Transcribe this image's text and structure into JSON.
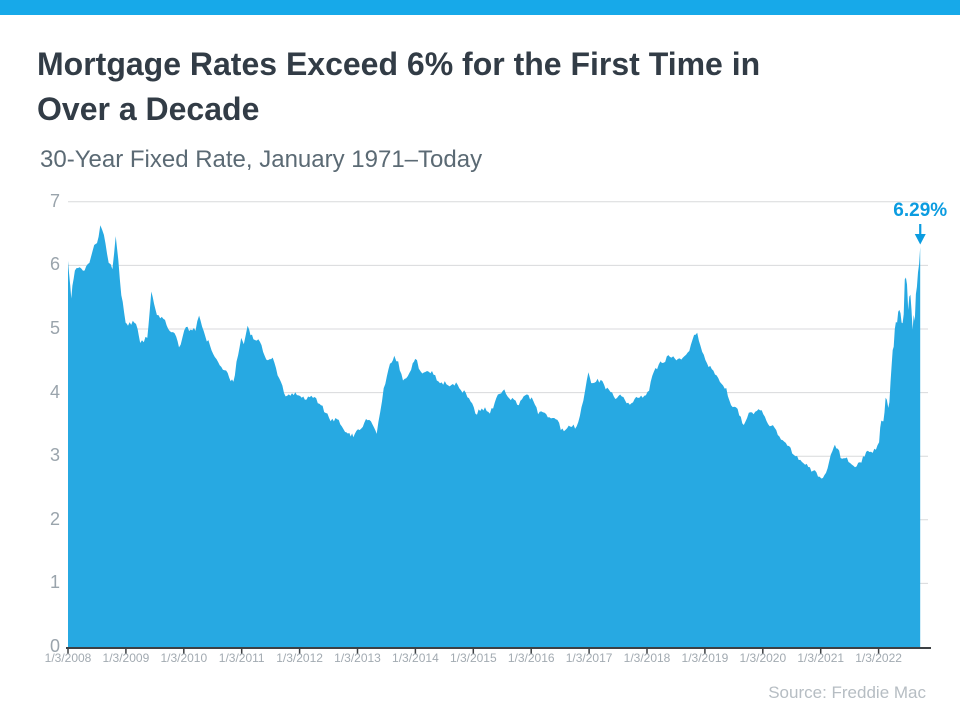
{
  "page": {
    "background": "#ffffff"
  },
  "top_bar": {
    "color": "#17a9e9"
  },
  "header": {
    "title": "Mortgage Rates Exceed 6% for the First Time in Over a Decade",
    "title_lines": [
      "Mortgage Rates Exceed 6% for the First Time in",
      "Over a Decade"
    ],
    "title_color": "#323c46",
    "subtitle": "30-Year Fixed Rate, January 1971–Today",
    "subtitle_color": "#5b6a74"
  },
  "footer": {
    "source": "Source: Freddie Mac",
    "color": "#b6bdc3"
  },
  "chart_data": {
    "type": "area",
    "series_name": "30-Year Fixed Mortgage Rate (%)",
    "area_color": "#27a9e2",
    "gridline_color": "#d8dadc",
    "axis_color": "#3d4043",
    "ytick_color": "#9aa4ac",
    "xtick_color": "#a2aab1",
    "grid": "horizontal gridlines at each whole percent, no vertical gridlines",
    "legend": "none",
    "ylim": [
      0,
      7
    ],
    "yticks": [
      0,
      1,
      2,
      3,
      4,
      5,
      6,
      7
    ],
    "xticks": [
      "1/3/2008",
      "1/3/2009",
      "1/3/2010",
      "1/3/2011",
      "1/3/2012",
      "1/3/2013",
      "1/3/2014",
      "1/3/2015",
      "1/3/2016",
      "1/3/2017",
      "1/3/2018",
      "1/3/2019",
      "1/3/2020",
      "1/3/2021",
      "1/3/2022"
    ],
    "annotation": {
      "label": "6.29%",
      "value": 6.29,
      "date": "9/22/2022",
      "color": "#0b9ce0",
      "arrow": "down"
    },
    "points": [
      {
        "dates": [
          "1/3/2008",
          "1/10/2008",
          "1/17/2008",
          "1/24/2008",
          "1/31/2008",
          "2008-02",
          "2008-03",
          "2008-04",
          "2008-05",
          "2008-06",
          "7/3/2008",
          "7/24/2008",
          "2008-08",
          "2008-09",
          "10/9/2008",
          "10/30/2008",
          "2008-11",
          "12/4/2008",
          "12/31/2008"
        ],
        "values": [
          6.07,
          5.87,
          5.69,
          5.48,
          5.68,
          5.92,
          5.97,
          5.92,
          6.04,
          6.32,
          6.35,
          6.63,
          6.48,
          6.04,
          5.94,
          6.46,
          6.09,
          5.53,
          5.1
        ]
      },
      {
        "dates": [
          "2009-01",
          "2009-02",
          "2009-03",
          "4/2/2009",
          "2009-05",
          "6/11/2009",
          "2009-07",
          "2009-08",
          "2009-09",
          "2009-10",
          "2009-11",
          "12/3/2009"
        ],
        "values": [
          5.05,
          5.13,
          5.0,
          4.78,
          4.86,
          5.59,
          5.22,
          5.19,
          5.06,
          4.95,
          4.88,
          4.71
        ]
      },
      {
        "dates": [
          "2010-01",
          "2010-02",
          "2010-03",
          "4/8/2010",
          "2010-05",
          "2010-06",
          "2010-07",
          "2010-08",
          "2010-09",
          "2010-10",
          "11/11/2010",
          "12/30/2010"
        ],
        "values": [
          5.03,
          4.99,
          4.97,
          5.21,
          4.89,
          4.74,
          4.56,
          4.43,
          4.35,
          4.23,
          4.17,
          4.86
        ]
      },
      {
        "dates": [
          "2011-01",
          "2/10/2011",
          "2011-03",
          "2011-04",
          "2011-05",
          "2011-06",
          "2011-07",
          "2011-08",
          "2011-09",
          "10/6/2011",
          "2011-11",
          "2011-12"
        ],
        "values": [
          4.76,
          5.05,
          4.84,
          4.84,
          4.64,
          4.51,
          4.55,
          4.27,
          4.11,
          3.94,
          3.99,
          3.96
        ]
      },
      {
        "dates": [
          "2012-01",
          "2012-02",
          "2012-03",
          "2012-04",
          "2012-05",
          "2012-06",
          "2012-07",
          "2012-08",
          "2012-09",
          "2012-10",
          "11/21/2012",
          "2012-12"
        ],
        "values": [
          3.92,
          3.89,
          3.95,
          3.91,
          3.8,
          3.68,
          3.55,
          3.6,
          3.5,
          3.38,
          3.31,
          3.35
        ]
      },
      {
        "dates": [
          "2013-01",
          "2013-02",
          "2013-03",
          "2013-04",
          "5/2/2013",
          "2013-06",
          "2013-07",
          "8/22/2013",
          "2013-09",
          "2013-10",
          "2013-11",
          "2013-12"
        ],
        "values": [
          3.41,
          3.53,
          3.57,
          3.45,
          3.35,
          4.07,
          4.37,
          4.58,
          4.49,
          4.19,
          4.26,
          4.46
        ]
      },
      {
        "dates": [
          "1/2/2014",
          "2014-02",
          "2014-03",
          "2014-04",
          "2014-05",
          "2014-06",
          "2014-07",
          "2014-08",
          "2014-09",
          "2014-10",
          "2014-11",
          "2014-12"
        ],
        "values": [
          4.53,
          4.3,
          4.34,
          4.34,
          4.19,
          4.16,
          4.13,
          4.12,
          4.16,
          4.04,
          4.0,
          3.86
        ]
      },
      {
        "dates": [
          "2015-01",
          "2015-02",
          "2015-03",
          "2015-04",
          "2015-05",
          "2015-06",
          "2015-07",
          "2015-08",
          "2015-09",
          "2015-10",
          "2015-11",
          "2015-12"
        ],
        "values": [
          3.67,
          3.71,
          3.77,
          3.67,
          3.84,
          3.98,
          4.05,
          3.91,
          3.89,
          3.8,
          3.94,
          3.96
        ]
      },
      {
        "dates": [
          "2016-01",
          "2016-02",
          "2016-03",
          "2016-04",
          "2016-05",
          "2016-06",
          "7/7/2016",
          "2016-08",
          "2016-09",
          "2016-10",
          "2016-11",
          "12/29/2016"
        ],
        "values": [
          3.87,
          3.66,
          3.69,
          3.61,
          3.6,
          3.57,
          3.41,
          3.44,
          3.46,
          3.47,
          3.77,
          4.32
        ]
      },
      {
        "dates": [
          "2017-01",
          "2017-02",
          "2017-03",
          "2017-04",
          "2017-05",
          "2017-06",
          "2017-07",
          "2017-08",
          "2017-09",
          "2017-10",
          "2017-11",
          "2017-12"
        ],
        "values": [
          4.15,
          4.17,
          4.2,
          4.05,
          4.01,
          3.9,
          3.97,
          3.88,
          3.81,
          3.9,
          3.92,
          3.95
        ]
      },
      {
        "dates": [
          "2018-01",
          "2018-02",
          "2018-03",
          "2018-04",
          "2018-05",
          "2018-06",
          "2018-07",
          "2018-08",
          "2018-09",
          "2018-10",
          "11/15/2018",
          "2018-12"
        ],
        "values": [
          4.03,
          4.33,
          4.44,
          4.47,
          4.59,
          4.57,
          4.53,
          4.55,
          4.63,
          4.83,
          4.94,
          4.64
        ]
      },
      {
        "dates": [
          "2019-01",
          "2019-02",
          "2019-03",
          "2019-04",
          "2019-05",
          "2019-06",
          "2019-07",
          "2019-08",
          "9/5/2019",
          "2019-10",
          "2019-11",
          "2019-12"
        ],
        "values": [
          4.46,
          4.37,
          4.27,
          4.14,
          4.07,
          3.8,
          3.77,
          3.62,
          3.49,
          3.69,
          3.7,
          3.72
        ]
      },
      {
        "dates": [
          "2020-01",
          "2020-02",
          "2020-03",
          "2020-04",
          "2020-05",
          "2020-06",
          "2020-07",
          "2020-08",
          "2020-09",
          "2020-10",
          "2020-11",
          "2020-12"
        ],
        "values": [
          3.62,
          3.47,
          3.45,
          3.31,
          3.23,
          3.16,
          3.02,
          2.94,
          2.89,
          2.83,
          2.77,
          2.68
        ]
      },
      {
        "dates": [
          "1/7/2021",
          "2021-02",
          "2021-03",
          "4/1/2021",
          "2021-05",
          "2021-06",
          "2021-07",
          "2021-08",
          "2021-09",
          "2021-10",
          "2021-11",
          "2021-12"
        ],
        "values": [
          2.65,
          2.81,
          3.08,
          3.18,
          2.96,
          2.98,
          2.87,
          2.84,
          2.9,
          3.07,
          3.07,
          3.1
        ]
      },
      {
        "dates": [
          "1/6/2022",
          "1/13/2022",
          "1/20/2022",
          "1/27/2022",
          "2/3/2022",
          "2/10/2022",
          "2/17/2022",
          "2/24/2022",
          "3/3/2022",
          "3/10/2022",
          "3/17/2022",
          "3/24/2022",
          "3/31/2022",
          "4/7/2022",
          "4/14/2022",
          "4/21/2022",
          "4/28/2022",
          "5/5/2022",
          "5/12/2022",
          "5/19/2022",
          "5/26/2022",
          "6/2/2022",
          "6/9/2022",
          "6/16/2022",
          "6/23/2022",
          "6/30/2022",
          "7/7/2022",
          "7/14/2022",
          "7/21/2022",
          "7/28/2022",
          "8/4/2022",
          "8/11/2022",
          "8/18/2022",
          "8/25/2022",
          "9/1/2022",
          "9/8/2022",
          "9/15/2022",
          "9/22/2022"
        ],
        "values": [
          3.22,
          3.45,
          3.56,
          3.55,
          3.55,
          3.69,
          3.92,
          3.89,
          3.76,
          3.85,
          4.16,
          4.42,
          4.67,
          4.72,
          5.0,
          5.11,
          5.1,
          5.27,
          5.3,
          5.25,
          5.1,
          5.09,
          5.23,
          5.78,
          5.81,
          5.7,
          5.3,
          5.51,
          5.54,
          5.3,
          4.99,
          5.22,
          5.13,
          5.55,
          5.66,
          5.89,
          6.02,
          6.29
        ]
      }
    ]
  }
}
